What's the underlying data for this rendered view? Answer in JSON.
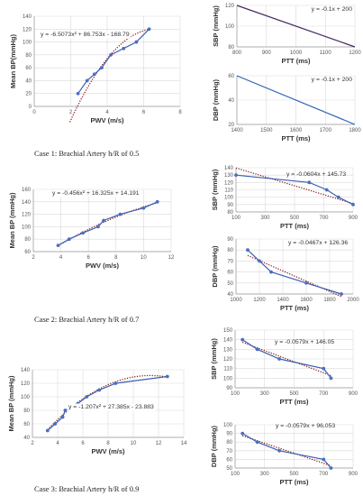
{
  "captions": [
    "Case 1: Brachial Artery h/R of 0.5",
    "Case 2: Brachial Artery h/R of 0.7",
    "Case 3: Brachial Artery h/R of 0.9"
  ],
  "chart_data": [
    {
      "id": "c1-mean",
      "type": "scatter",
      "xlabel": "PWV (m/s)",
      "ylabel": "Mean BP(mmHg)",
      "xlim": [
        0,
        8
      ],
      "ylim": [
        0,
        140
      ],
      "xticks": [
        0,
        2,
        4,
        6,
        8
      ],
      "yticks": [
        0,
        20,
        40,
        60,
        80,
        100,
        120,
        140
      ],
      "grid": true,
      "series": [
        {
          "x": [
            2.4,
            2.9,
            3.3,
            3.7,
            4.2,
            4.9,
            5.6,
            6.3
          ],
          "y": [
            20,
            40,
            50,
            60,
            80,
            90,
            100,
            120
          ]
        }
      ],
      "trendline": {
        "kind": "poly2",
        "a": -6.5073,
        "b": 86.753,
        "c": -168.79,
        "xrange": [
          1.95,
          6.3
        ]
      },
      "equation": "y = -6.5073x² + 86.753x - 168.79"
    },
    {
      "id": "c1-sbp",
      "type": "line",
      "xlabel": "PTT (ms)",
      "ylabel": "SBP (mmHg)",
      "xlim": [
        800,
        1200
      ],
      "ylim": [
        80,
        120
      ],
      "xticks": [
        800,
        900,
        1000,
        1100,
        1200
      ],
      "yticks": [
        80,
        100,
        120
      ],
      "grid": true,
      "series": [
        {
          "x": [
            800,
            1200
          ],
          "y": [
            120,
            80
          ]
        }
      ],
      "equation": "y = -0.1x + 200"
    },
    {
      "id": "c1-dbp",
      "type": "line",
      "xlabel": "PTT (ms)",
      "ylabel": "DBP (mmHg)",
      "xlim": [
        1400,
        1800
      ],
      "ylim": [
        20,
        60
      ],
      "xticks": [
        1400,
        1500,
        1600,
        1700,
        1800
      ],
      "yticks": [
        20,
        40,
        60
      ],
      "grid": true,
      "series": [
        {
          "x": [
            1400,
            1800
          ],
          "y": [
            60,
            20
          ]
        }
      ],
      "equation": "y = -0.1x + 200"
    },
    {
      "id": "c2-mean",
      "type": "scatter",
      "xlabel": "PWV (m/s)",
      "ylabel": "Mean BP (mmHg)",
      "xlim": [
        2,
        12
      ],
      "ylim": [
        60,
        160
      ],
      "xticks": [
        2,
        4,
        6,
        8,
        10,
        12
      ],
      "yticks": [
        60,
        80,
        100,
        120,
        140,
        160
      ],
      "grid": true,
      "series": [
        {
          "x": [
            3.8,
            4.6,
            5.6,
            6.7,
            7.1,
            8.3,
            10,
            11
          ],
          "y": [
            70,
            80,
            90,
            100,
            110,
            120,
            130,
            140
          ]
        }
      ],
      "trendline": {
        "kind": "poly2",
        "a": -0.456,
        "b": 16.325,
        "c": 14.191,
        "xrange": [
          3.8,
          11
        ]
      },
      "equation": "y = -0.456x² + 16.325x + 14.191"
    },
    {
      "id": "c2-sbp",
      "type": "scatter",
      "xlabel": "PTT (ms)",
      "ylabel": "SBP (mmHg)",
      "xlim": [
        100,
        900
      ],
      "ylim": [
        80,
        140
      ],
      "xticks": [
        100,
        300,
        500,
        700,
        900
      ],
      "yticks": [
        80,
        90,
        100,
        110,
        120,
        130,
        140
      ],
      "grid": true,
      "series": [
        {
          "x": [
            100,
            600,
            720,
            800,
            900
          ],
          "y": [
            130,
            120,
            110,
            100,
            90
          ]
        }
      ],
      "trendline": {
        "kind": "linear",
        "m": -0.0604,
        "b": 145.73,
        "xrange": [
          100,
          900
        ]
      },
      "equation": "y = -0.0604x + 145.73"
    },
    {
      "id": "c2-dbp",
      "type": "scatter",
      "xlabel": "PTT (ms)",
      "ylabel": "DBP (mmHg)",
      "xlim": [
        1000,
        2000
      ],
      "ylim": [
        40,
        90
      ],
      "xticks": [
        1000,
        1200,
        1400,
        1600,
        1800,
        2000
      ],
      "yticks": [
        40,
        50,
        60,
        70,
        80,
        90
      ],
      "grid": true,
      "series": [
        {
          "x": [
            1100,
            1200,
            1300,
            1600,
            1900
          ],
          "y": [
            80,
            70,
            60,
            50,
            40
          ]
        }
      ],
      "trendline": {
        "kind": "linear",
        "m": -0.0467,
        "b": 126.36,
        "xrange": [
          1100,
          1900
        ]
      },
      "equation": "y = -0.0467x + 126.36"
    },
    {
      "id": "c3-mean",
      "type": "scatter",
      "xlabel": "PWV (m/s)",
      "ylabel": "Mean BP (mmHg)",
      "xlim": [
        2,
        14
      ],
      "ylim": [
        40,
        140
      ],
      "xticks": [
        2,
        4,
        6,
        8,
        10,
        12,
        14
      ],
      "yticks": [
        40,
        60,
        80,
        100,
        120,
        140
      ],
      "grid": true,
      "series": [
        {
          "x": [
            3.2,
            3.8,
            4.4,
            4.6,
            5.6,
            6.3,
            7.3,
            8.6,
            12.7
          ],
          "y": [
            50,
            60,
            70,
            80,
            90,
            100,
            110,
            120,
            130
          ]
        }
      ],
      "trendline": {
        "kind": "poly2",
        "a": -1.207,
        "b": 27.385,
        "c": -23.883,
        "xrange": [
          3.2,
          12.7
        ]
      },
      "equation": "y = -1.207x² + 27.385x - 23.883"
    },
    {
      "id": "c3-sbp",
      "type": "scatter",
      "xlabel": "PTT (ms)",
      "ylabel": "SBP (mmHg)",
      "xlim": [
        100,
        900
      ],
      "ylim": [
        90,
        150
      ],
      "xticks": [
        100,
        300,
        500,
        700,
        900
      ],
      "yticks": [
        90,
        100,
        110,
        120,
        130,
        140,
        150
      ],
      "grid": true,
      "series": [
        {
          "x": [
            150,
            250,
            400,
            700,
            750
          ],
          "y": [
            140,
            130,
            120,
            110,
            100
          ]
        }
      ],
      "trendline": {
        "kind": "linear",
        "m": -0.0579,
        "b": 146.05,
        "xrange": [
          150,
          750
        ]
      },
      "equation": "y = -0.0579x + 146.05"
    },
    {
      "id": "c3-dbp",
      "type": "scatter",
      "xlabel": "PTT (ms)",
      "ylabel": "DBP (mmHg)",
      "xlim": [
        100,
        900
      ],
      "ylim": [
        50,
        100
      ],
      "xticks": [
        100,
        300,
        500,
        700,
        900
      ],
      "yticks": [
        50,
        60,
        70,
        80,
        90,
        100
      ],
      "grid": true,
      "series": [
        {
          "x": [
            150,
            250,
            400,
            700,
            750
          ],
          "y": [
            90,
            80,
            70,
            60,
            50
          ]
        }
      ],
      "trendline": {
        "kind": "linear",
        "m": -0.0579,
        "b": 96.053,
        "xrange": [
          150,
          750
        ]
      },
      "equation": "y = -0.0579x + 96.053"
    }
  ]
}
